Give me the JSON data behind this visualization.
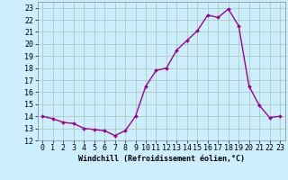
{
  "x": [
    0,
    1,
    2,
    3,
    4,
    5,
    6,
    7,
    8,
    9,
    10,
    11,
    12,
    13,
    14,
    15,
    16,
    17,
    18,
    19,
    20,
    21,
    22,
    23
  ],
  "y": [
    14.0,
    13.8,
    13.5,
    13.4,
    13.0,
    12.9,
    12.8,
    12.4,
    12.8,
    14.0,
    16.5,
    17.8,
    18.0,
    19.5,
    20.3,
    21.1,
    22.4,
    22.2,
    22.9,
    21.5,
    16.5,
    14.9,
    13.9,
    14.0
  ],
  "line_color": "#990099",
  "marker": "D",
  "marker_size": 2.0,
  "linewidth": 1.0,
  "bg_color": "#cceeff",
  "grid_color": "#aaccbb",
  "xlabel": "Windchill (Refroidissement éolien,°C)",
  "xlabel_fontsize": 6.0,
  "tick_fontsize": 6.0,
  "ylim": [
    12,
    23.5
  ],
  "xlim": [
    -0.5,
    23.5
  ],
  "yticks": [
    12,
    13,
    14,
    15,
    16,
    17,
    18,
    19,
    20,
    21,
    22,
    23
  ],
  "xticks": [
    0,
    1,
    2,
    3,
    4,
    5,
    6,
    7,
    8,
    9,
    10,
    11,
    12,
    13,
    14,
    15,
    16,
    17,
    18,
    19,
    20,
    21,
    22,
    23
  ]
}
